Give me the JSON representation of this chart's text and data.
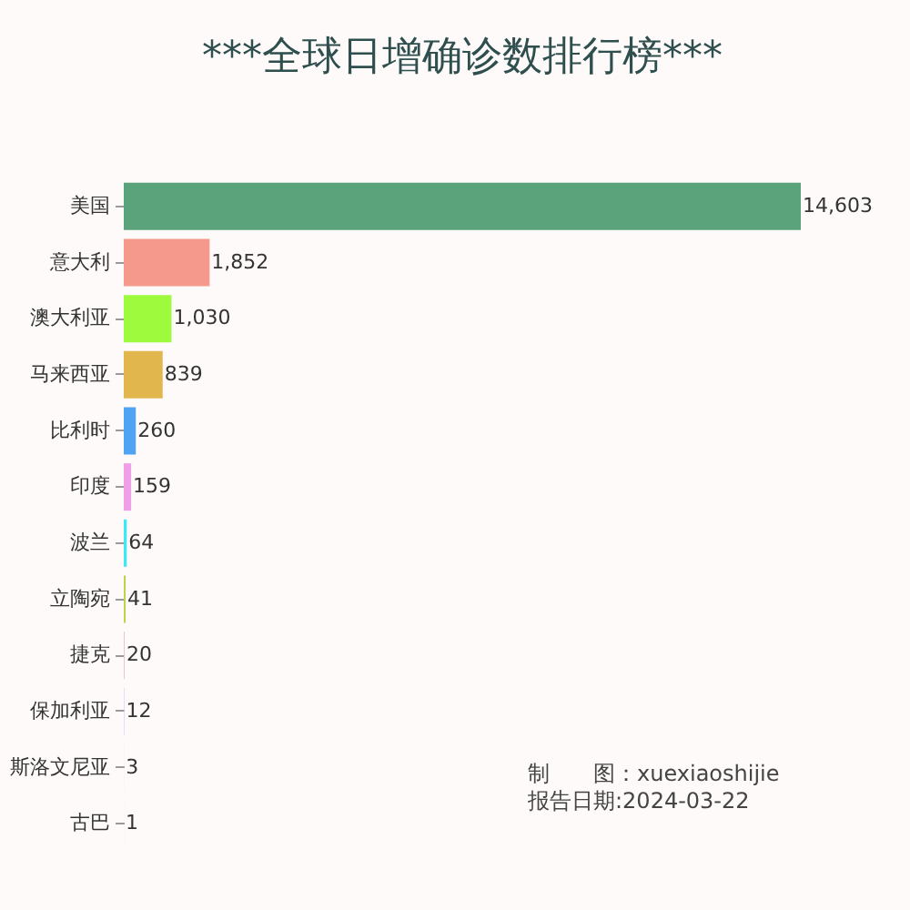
{
  "chart_data": {
    "type": "bar",
    "orientation": "horizontal",
    "title": "***全球日增确诊数排行榜***",
    "categories": [
      "美国",
      "意大利",
      "澳大利亚",
      "马来西亚",
      "比利时",
      "印度",
      "波兰",
      "立陶宛",
      "捷克",
      "保加利亚",
      "斯洛文尼亚",
      "古巴"
    ],
    "values": [
      14603,
      1852,
      1030,
      839,
      260,
      159,
      64,
      41,
      20,
      12,
      3,
      1
    ],
    "value_labels": [
      "14,603",
      "1,852",
      "1,030",
      "839",
      "260",
      "159",
      "64",
      "41",
      "20",
      "12",
      "3",
      "1"
    ],
    "colors": [
      "#5ba37a",
      "#f4998c",
      "#9dfa3c",
      "#e0b64d",
      "#4fa3f5",
      "#ee9fe8",
      "#3ee8f5",
      "#bdd44a",
      "#f0c3cf",
      "#d2d2ee",
      "#e0e0e0",
      "#fbd8d8"
    ],
    "annotations": [
      "制　　图：xuexiaoshijie",
      "报告日期:2024-03-22"
    ]
  }
}
